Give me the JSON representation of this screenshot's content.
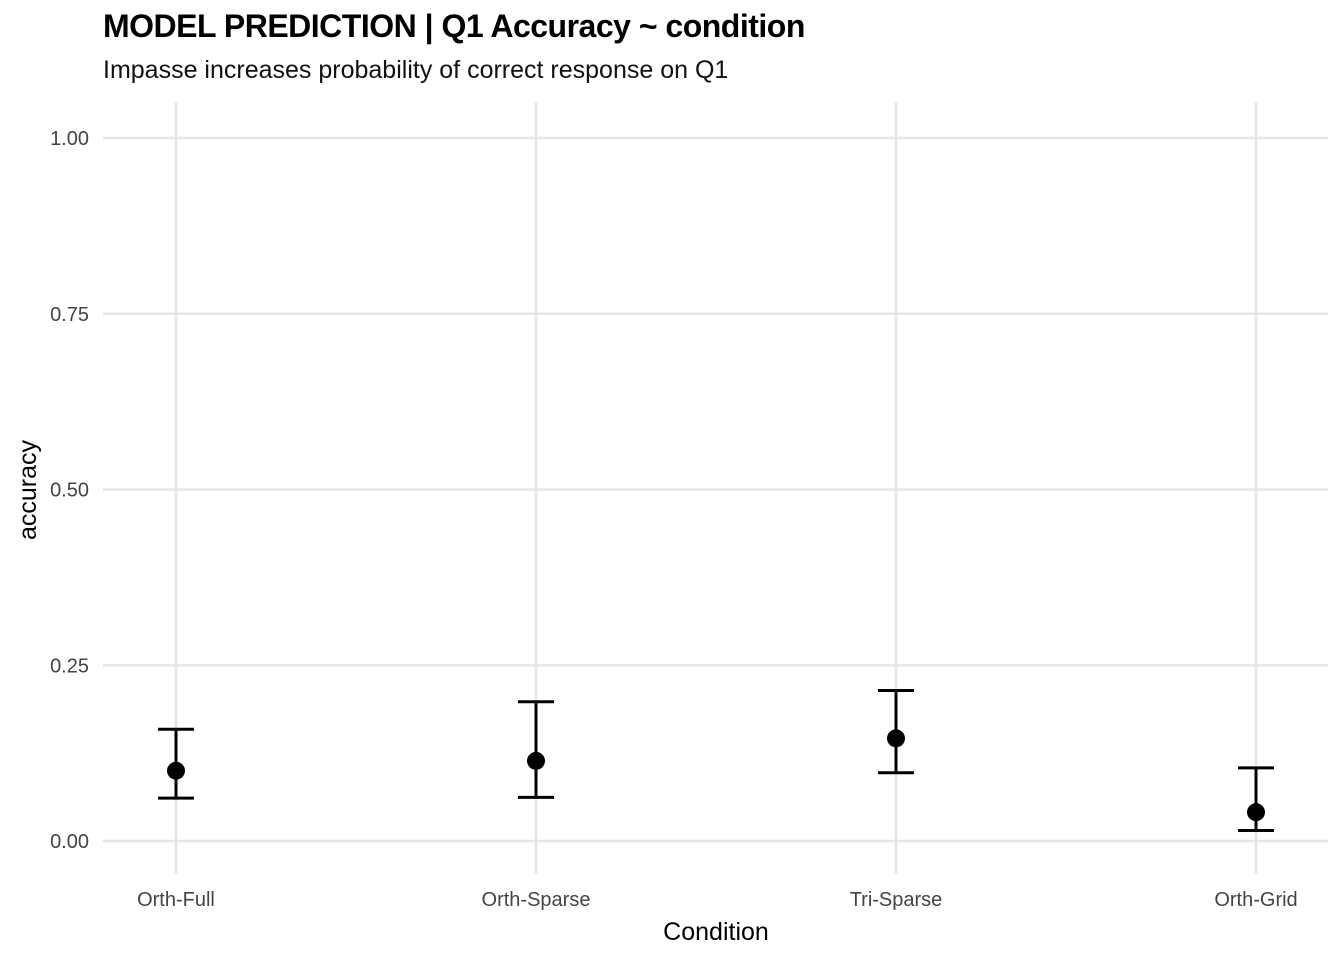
{
  "chart_data": {
    "type": "scatter",
    "title": "MODEL PREDICTION  | Q1 Accuracy ~ condition",
    "subtitle": "Impasse increases probability of correct response on Q1",
    "xlabel": "Condition",
    "ylabel": "accuracy",
    "ylim": [
      0,
      1
    ],
    "y_ticks": [
      0,
      0.25,
      0.5,
      0.75,
      1
    ],
    "y_tick_labels": [
      "0.00",
      "0.25",
      "0.50",
      "0.75",
      "1.00"
    ],
    "categories": [
      "Orth-Full",
      "Orth-Sparse",
      "Tri-Sparse",
      "Orth-Grid"
    ],
    "points": [
      {
        "category": "Orth-Full",
        "estimate": 0.1,
        "lower": 0.061,
        "upper": 0.159
      },
      {
        "category": "Orth-Sparse",
        "estimate": 0.114,
        "lower": 0.062,
        "upper": 0.198
      },
      {
        "category": "Tri-Sparse",
        "estimate": 0.146,
        "lower": 0.097,
        "upper": 0.214
      },
      {
        "category": "Orth-Grid",
        "estimate": 0.041,
        "lower": 0.015,
        "upper": 0.104
      }
    ],
    "grid": true,
    "legend": "none",
    "colors": {
      "grid": "#e6e6e6",
      "mark": "#000000"
    }
  }
}
